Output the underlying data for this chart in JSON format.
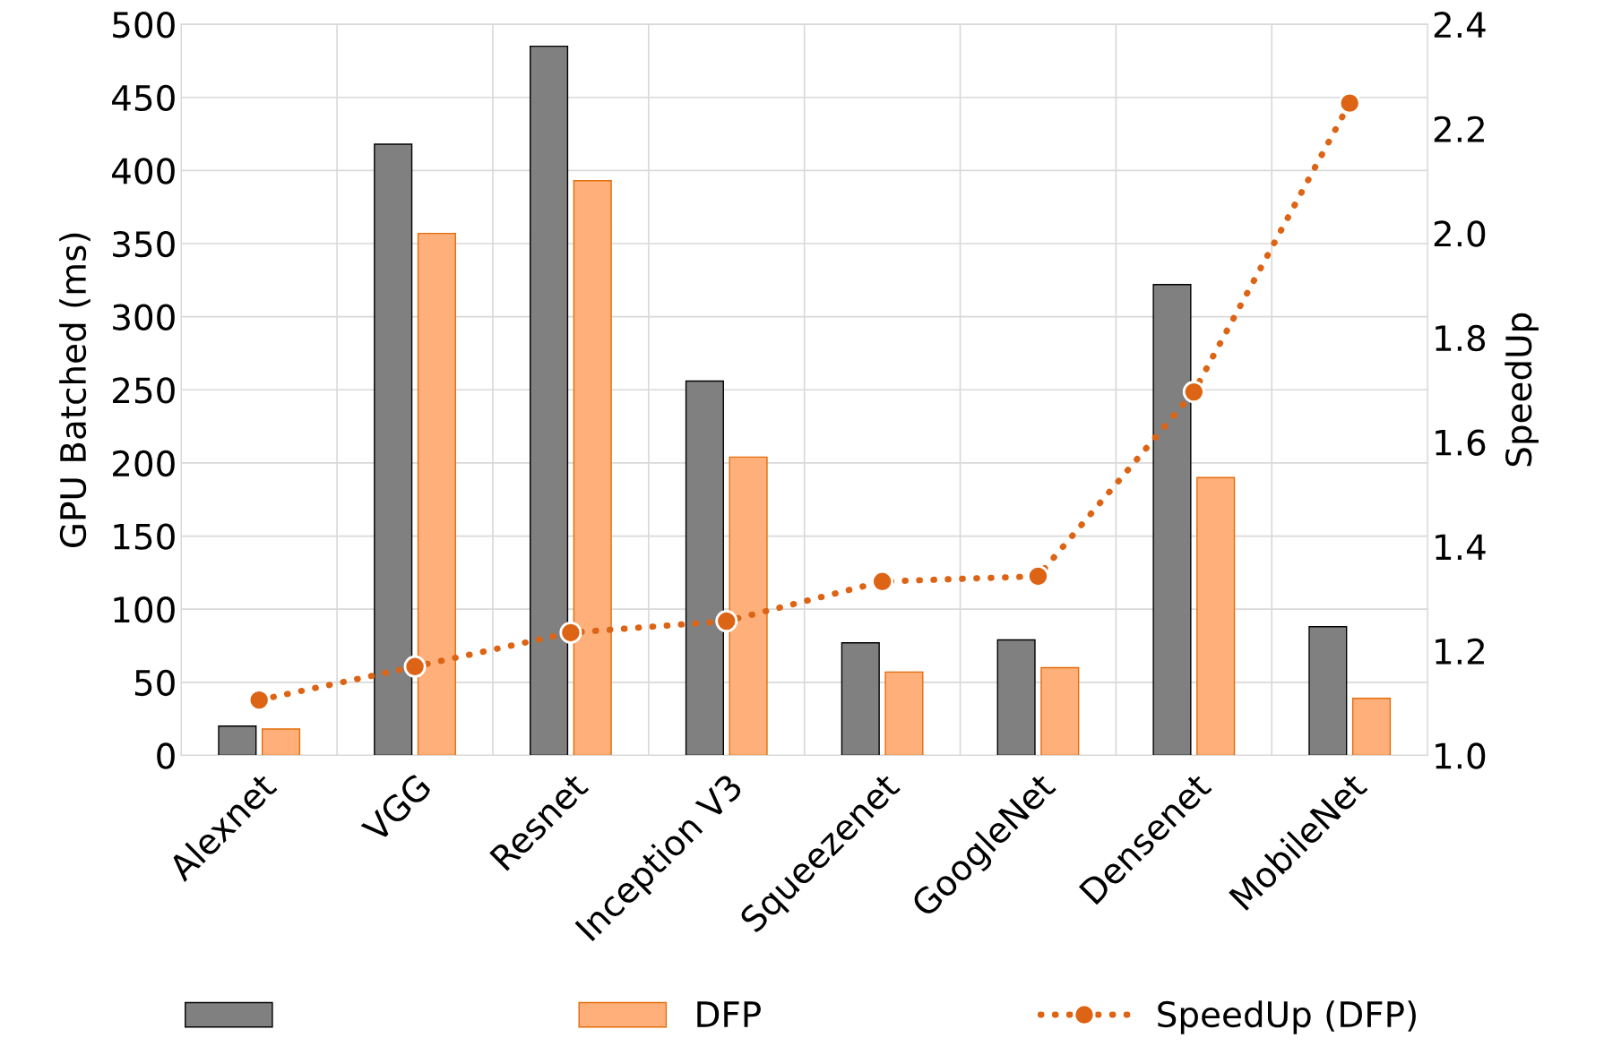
{
  "chart_data": {
    "type": "bar",
    "categories": [
      "Alexnet",
      "VGG",
      "Resnet",
      "Inception V3",
      "Squeezenet",
      "GoogleNet",
      "Densenet",
      "MobileNet"
    ],
    "ylabel": "GPU Batched (ms)",
    "y2label": "SpeedUp",
    "ylim": [
      0,
      500
    ],
    "yticks": [
      0,
      50,
      100,
      150,
      200,
      250,
      300,
      350,
      400,
      450,
      500
    ],
    "y2lim": [
      1.0,
      2.4
    ],
    "y2ticks": [
      {
        "value": 1.0,
        "label": "1.0"
      },
      {
        "value": 1.2,
        "label": "1.2"
      },
      {
        "value": 1.4,
        "label": "1.4"
      },
      {
        "value": 1.6,
        "label": "1.6"
      },
      {
        "value": 1.8,
        "label": "1.8"
      },
      {
        "value": 2.0,
        "label": "2.0"
      },
      {
        "value": 2.2,
        "label": "2.2"
      },
      {
        "value": 2.4,
        "label": "2.4"
      }
    ],
    "grid": true,
    "legend": "bottom",
    "series": [
      {
        "color": "#808080",
        "values": [
          20,
          418,
          485,
          256,
          77,
          79,
          322,
          88
        ]
      },
      {
        "name": "DFP",
        "color": "#ffb07a",
        "values": [
          18,
          357,
          393,
          204,
          57,
          60,
          190,
          39
        ]
      },
      {
        "type": "line",
        "name": "SpeedUp (DFP)",
        "axis": "y2",
        "color": "#dc6414",
        "marker": "circle",
        "line_style": "dotted",
        "values": [
          1.106,
          1.17,
          1.235,
          1.257,
          1.333,
          1.343,
          1.696,
          2.249
        ]
      }
    ]
  }
}
